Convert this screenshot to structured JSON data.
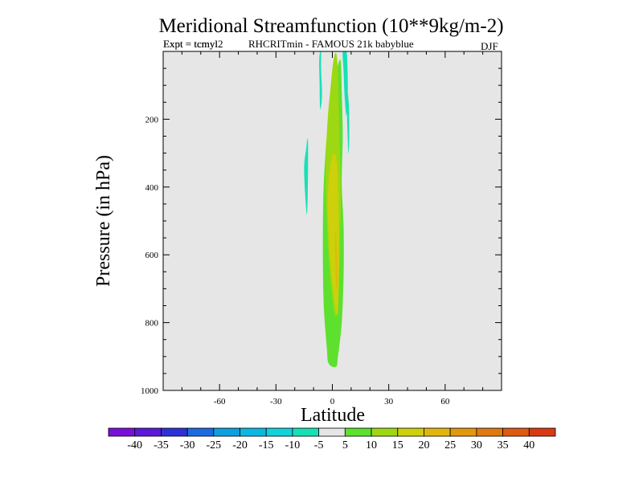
{
  "chart_data": {
    "type": "contour",
    "title": "Meridional Streamfunction (10**9kg/m-2)",
    "subtitle_overlap_a": "Expt = tcmyl2",
    "subtitle_overlap_b": "Expt = tcmyl",
    "subtitle_rest": "RHCRITmin - FAMOUS 21k babyblue",
    "season": "DJF",
    "xlabel": "Latitude",
    "ylabel": "Pressure (in hPa)",
    "xlim": [
      -90,
      90
    ],
    "ylim": [
      1000,
      0
    ],
    "xticks": [
      -60,
      -30,
      0,
      30,
      60
    ],
    "xtick_labels": [
      "-60",
      "-30",
      "0",
      "30",
      "60"
    ],
    "yticks": [
      200,
      400,
      600,
      800,
      1000
    ],
    "ytick_labels": [
      "200",
      "400",
      "600",
      "800",
      "1000"
    ],
    "background_color": "#e6e6e6",
    "colorbar": {
      "levels": [
        -45,
        -40,
        -35,
        -30,
        -25,
        -20,
        -15,
        -10,
        -5,
        5,
        10,
        15,
        20,
        25,
        30,
        35,
        40,
        45
      ],
      "labels": [
        "-40",
        "-35",
        "-30",
        "-25",
        "-20",
        "-15",
        "-10",
        "-5",
        "5",
        "10",
        "15",
        "20",
        "25",
        "30",
        "35",
        "40"
      ],
      "colors": [
        "#7a10d8",
        "#5a1ad8",
        "#2e31d6",
        "#1c6be0",
        "#0d9fe0",
        "#0ab8e2",
        "#12d2dc",
        "#18e0b6",
        "#e6e6e6",
        "#5ee02e",
        "#9dd812",
        "#cdd00a",
        "#e2b60c",
        "#e2980e",
        "#e07a10",
        "#dd5a12",
        "#d83a14"
      ]
    },
    "regions": [
      {
        "name": "positive-core-5-10",
        "level": "5 to 10",
        "color": "#5ee02e",
        "lat": [
          -2,
          -3,
          -4.5,
          -5,
          -5,
          -4.5,
          -3,
          -1.5,
          1,
          3,
          4.5,
          5,
          5.5,
          5,
          6,
          6,
          5,
          3,
          2
        ],
        "p": [
          920,
          870,
          760,
          640,
          500,
          380,
          250,
          160,
          100,
          40,
          30,
          120,
          250,
          390,
          520,
          660,
          800,
          900,
          930
        ]
      },
      {
        "name": "positive-band-10-15",
        "level": "10 to 15",
        "color": "#9dd812",
        "lat": [
          1.5,
          -0.5,
          -2,
          -3,
          -3.5,
          -3.5,
          -2.5,
          -1,
          0.5,
          2,
          3,
          3.5,
          4,
          4.5,
          4,
          3
        ],
        "p": [
          780,
          700,
          600,
          480,
          380,
          320,
          200,
          110,
          30,
          5,
          60,
          180,
          300,
          430,
          560,
          720
        ]
      },
      {
        "name": "positive-core-15-20",
        "level": "15 to 20",
        "color": "#cdd00a",
        "lat": [
          2.5,
          0.5,
          -1,
          -2,
          -2.5,
          -2,
          -0.5,
          1,
          2.5,
          3.2,
          3.5,
          3.4
        ],
        "p": [
          780,
          710,
          630,
          540,
          460,
          380,
          320,
          300,
          330,
          440,
          580,
          700
        ]
      },
      {
        "name": "positive-core-20-25",
        "level": "20 to 25",
        "color": "#e2b60c",
        "lat": [
          2.2,
          1.7,
          1.5,
          1.8,
          2.4,
          2.6
        ],
        "p": [
          700,
          640,
          560,
          530,
          600,
          670
        ]
      },
      {
        "name": "negative-left-top",
        "level": "-5 to -10",
        "color": "#18e0b6",
        "lat": [
          -6.5,
          -6,
          -6,
          -5.5,
          -6.5,
          -6.8,
          -7
        ],
        "p": [
          0,
          0,
          50,
          130,
          170,
          90,
          30
        ]
      },
      {
        "name": "negative-right-top",
        "level": "-5 to -10",
        "color": "#18e0b6",
        "lat": [
          5.5,
          7.5,
          8,
          8.2,
          7.5,
          6.5,
          6
        ],
        "p": [
          0,
          0,
          40,
          120,
          190,
          130,
          60
        ]
      },
      {
        "name": "negative-right-mid",
        "level": "-5 to -10",
        "color": "#18e0b6",
        "lat": [
          8,
          8.8,
          9,
          8.6,
          8.2,
          7.8
        ],
        "p": [
          120,
          160,
          250,
          300,
          260,
          180
        ]
      },
      {
        "name": "negative-left-mid",
        "level": "-5 to -10",
        "color": "#18e0b6",
        "lat": [
          -14,
          -13,
          -13,
          -13.5,
          -14.5,
          -15
        ],
        "p": [
          290,
          260,
          380,
          480,
          420,
          340
        ]
      }
    ]
  }
}
